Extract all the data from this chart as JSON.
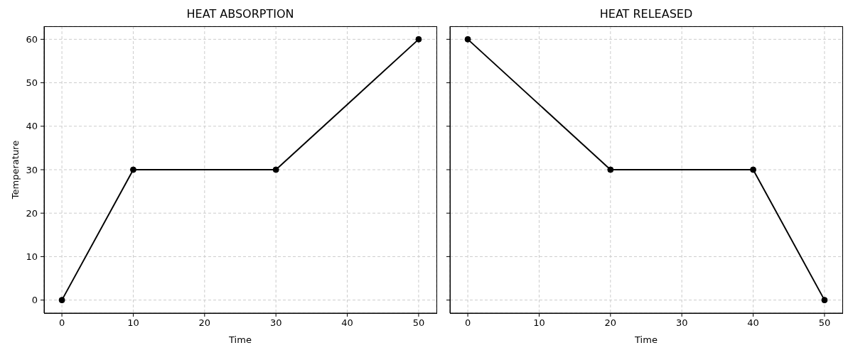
{
  "chart_data": [
    {
      "type": "line",
      "title": "HEAT ABSORPTION",
      "xlabel": "Time",
      "ylabel": "Temperature",
      "x": [
        0,
        10,
        30,
        50
      ],
      "values": [
        0,
        30,
        30,
        60
      ],
      "color": "#000000",
      "marker": "circle",
      "line_style": "solid",
      "grid": true,
      "xlim": [
        -2.5,
        52.5
      ],
      "ylim": [
        -3,
        63
      ],
      "xticks": [
        0,
        10,
        20,
        30,
        40,
        50
      ],
      "yticks": [
        0,
        10,
        20,
        30,
        40,
        50,
        60
      ]
    },
    {
      "type": "line",
      "title": "HEAT RELEASED",
      "xlabel": "Time",
      "x": [
        0,
        20,
        40,
        50
      ],
      "values": [
        60,
        30,
        30,
        0
      ],
      "color": "#000000",
      "marker": "circle",
      "line_style": "solid",
      "grid": true,
      "xlim": [
        -2.5,
        52.5
      ],
      "ylim": [
        -3,
        63
      ],
      "xticks": [
        0,
        10,
        20,
        30,
        40,
        50
      ],
      "yticks": [
        0,
        10,
        20,
        30,
        40,
        50,
        60
      ],
      "tick_labels": "x"
    }
  ]
}
